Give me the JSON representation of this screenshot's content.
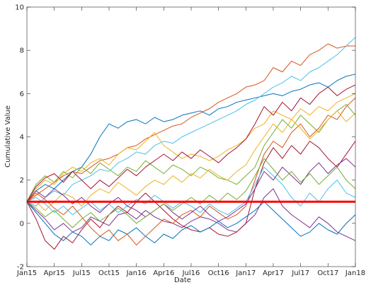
{
  "chart_data": {
    "type": "line",
    "xlabel": "Date",
    "ylabel": "Cumulative Value",
    "x": [
      0,
      1,
      2,
      3,
      4,
      5,
      6,
      7,
      8,
      9,
      10,
      11,
      12,
      13,
      14,
      15,
      16,
      17,
      18,
      19,
      20,
      21,
      22,
      23,
      24,
      25,
      26,
      27,
      28,
      29,
      30,
      31,
      32,
      33,
      34,
      35,
      36
    ],
    "xlim": [
      0,
      36
    ],
    "xticks": [
      {
        "value": 0,
        "label": "Jan15"
      },
      {
        "value": 3,
        "label": "Apr15"
      },
      {
        "value": 6,
        "label": "Jul15"
      },
      {
        "value": 9,
        "label": "Oct15"
      },
      {
        "value": 12,
        "label": "Jan16"
      },
      {
        "value": 15,
        "label": "Apr16"
      },
      {
        "value": 18,
        "label": "Jul16"
      },
      {
        "value": 21,
        "label": "Oct16"
      },
      {
        "value": 24,
        "label": "Jan17"
      },
      {
        "value": 27,
        "label": "Apr17"
      },
      {
        "value": 30,
        "label": "Jul17"
      },
      {
        "value": 33,
        "label": "Oct17"
      },
      {
        "value": 36,
        "label": "Jan18"
      }
    ],
    "ylim": [
      -2,
      10
    ],
    "yticks": [
      -2,
      0,
      2,
      4,
      6,
      8,
      10
    ],
    "hline": 1,
    "hline_color": "#ff0000",
    "series": [
      {
        "color": "#D95319",
        "values": [
          1,
          1.3,
          1.6,
          1.9,
          2.2,
          2.4,
          2.3,
          2.6,
          2.9,
          3.0,
          3.2,
          3.5,
          3.6,
          3.9,
          4.1,
          4.3,
          4.5,
          4.6,
          4.9,
          5.1,
          5.3,
          5.6,
          5.8,
          6.0,
          6.3,
          6.4,
          6.6,
          7.2,
          7.0,
          7.5,
          7.3,
          7.8,
          8.0,
          8.3,
          8.1,
          8.2,
          8.2
        ]
      },
      {
        "color": "#0072BD",
        "values": [
          1,
          1.5,
          1.8,
          1.6,
          2.0,
          2.4,
          2.6,
          3.2,
          4.0,
          4.6,
          4.4,
          4.7,
          4.8,
          4.6,
          4.9,
          4.7,
          4.8,
          5.0,
          5.1,
          5.2,
          5.0,
          5.3,
          5.4,
          5.6,
          5.7,
          5.8,
          5.9,
          6.0,
          5.9,
          6.1,
          6.2,
          6.4,
          6.5,
          6.3,
          6.6,
          6.8,
          6.9
        ]
      },
      {
        "color": "#4DBEEE",
        "values": [
          1,
          0.8,
          1.2,
          1.5,
          1.3,
          1.8,
          2.0,
          2.2,
          2.5,
          2.4,
          2.8,
          3.0,
          3.3,
          3.2,
          3.6,
          3.8,
          3.7,
          4.0,
          4.2,
          4.4,
          4.6,
          4.8,
          5.0,
          5.2,
          5.5,
          5.7,
          6.0,
          6.3,
          6.5,
          6.8,
          6.6,
          7.0,
          7.2,
          7.5,
          7.8,
          8.2,
          8.6
        ]
      },
      {
        "color": "#EDB120",
        "values": [
          1,
          1.6,
          2.0,
          1.8,
          2.3,
          2.6,
          2.4,
          2.8,
          3.0,
          2.7,
          3.2,
          3.5,
          3.4,
          3.8,
          4.2,
          3.6,
          3.3,
          3.0,
          3.2,
          3.1,
          2.9,
          3.1,
          3.4,
          3.6,
          3.9,
          4.4,
          4.6,
          5.2,
          5.0,
          4.8,
          5.3,
          5.0,
          5.4,
          5.2,
          5.6,
          5.8,
          6.0
        ]
      },
      {
        "color": "#7E2F8E",
        "values": [
          1,
          0.6,
          0.2,
          -0.3,
          0.0,
          -0.4,
          -0.2,
          0.3,
          0.1,
          -0.1,
          0.4,
          0.5,
          0.2,
          0.6,
          0.3,
          0.1,
          0.0,
          -0.2,
          0.1,
          0.3,
          0.2,
          0.0,
          -0.3,
          -0.4,
          0.0,
          0.4,
          1.2,
          1.6,
          0.8,
          0.4,
          0.1,
          -0.2,
          0.3,
          0.0,
          -0.4,
          -0.6,
          -0.8
        ]
      },
      {
        "color": "#77AC30",
        "values": [
          1,
          1.8,
          2.2,
          1.9,
          2.4,
          2.1,
          2.6,
          2.3,
          2.8,
          2.5,
          2.2,
          2.6,
          2.4,
          2.9,
          2.6,
          2.3,
          2.7,
          2.5,
          2.2,
          2.6,
          2.4,
          2.1,
          2.0,
          1.8,
          2.2,
          2.6,
          3.6,
          4.2,
          4.8,
          4.4,
          5.0,
          4.6,
          4.2,
          4.8,
          5.2,
          5.5,
          5.0
        ]
      },
      {
        "color": "#A2142F",
        "values": [
          1,
          0.2,
          -0.8,
          -1.2,
          -0.6,
          -0.9,
          -0.3,
          0.2,
          -0.2,
          0.4,
          0.8,
          0.5,
          1.0,
          1.4,
          1.0,
          0.6,
          0.2,
          -0.1,
          -0.3,
          -0.4,
          -0.2,
          -0.5,
          -0.6,
          -0.4,
          0.0,
          1.6,
          2.8,
          3.5,
          3.0,
          3.6,
          3.2,
          3.8,
          3.5,
          3.0,
          2.6,
          3.2,
          3.8
        ]
      },
      {
        "color": "#0072BD",
        "values": [
          1,
          0.5,
          0.0,
          -0.5,
          -0.8,
          -0.4,
          -0.6,
          -1.0,
          -0.6,
          -0.8,
          -0.3,
          -0.5,
          -0.2,
          -0.6,
          -0.9,
          -0.5,
          -0.7,
          -0.3,
          -0.1,
          -0.4,
          -0.2,
          0.1,
          -0.2,
          0.0,
          0.3,
          0.6,
          1.0,
          0.6,
          0.2,
          -0.2,
          -0.6,
          -0.4,
          0.0,
          -0.3,
          -0.5,
          0.0,
          0.4
        ]
      },
      {
        "color": "#D95319",
        "values": [
          1,
          1.4,
          1.1,
          0.7,
          0.4,
          0.8,
          0.3,
          -0.2,
          -0.6,
          -0.3,
          -0.8,
          -0.5,
          -1.0,
          -0.6,
          -0.2,
          0.2,
          0.0,
          0.4,
          0.6,
          0.3,
          0.8,
          0.5,
          0.2,
          0.4,
          0.8,
          2.0,
          3.2,
          3.8,
          3.5,
          4.2,
          4.6,
          4.0,
          4.4,
          5.0,
          4.8,
          5.4,
          5.8
        ]
      },
      {
        "color": "#4DBEEE",
        "values": [
          1,
          1.2,
          0.9,
          0.5,
          0.8,
          0.4,
          0.7,
          1.0,
          0.6,
          0.9,
          0.5,
          0.8,
          1.1,
          0.9,
          1.3,
          1.0,
          0.7,
          1.0,
          0.8,
          0.5,
          0.9,
          0.6,
          0.4,
          0.7,
          1.0,
          1.8,
          2.6,
          2.2,
          1.8,
          1.2,
          0.8,
          1.4,
          1.0,
          1.6,
          2.0,
          1.4,
          1.2
        ]
      },
      {
        "color": "#EDB120",
        "values": [
          1,
          1.0,
          0.6,
          1.0,
          1.4,
          1.2,
          0.8,
          1.3,
          1.6,
          1.4,
          1.9,
          1.6,
          1.3,
          1.7,
          2.0,
          1.8,
          2.2,
          1.9,
          2.3,
          2.1,
          2.5,
          2.2,
          2.0,
          2.4,
          2.7,
          3.4,
          4.0,
          4.6,
          4.2,
          4.8,
          4.4,
          3.9,
          4.3,
          4.8,
          5.2,
          4.7,
          5.1
        ]
      },
      {
        "color": "#7E2F8E",
        "values": [
          1,
          1.5,
          1.2,
          1.6,
          1.3,
          0.9,
          1.2,
          0.8,
          0.5,
          0.9,
          1.2,
          0.8,
          0.6,
          0.3,
          0.6,
          0.9,
          0.5,
          0.2,
          0.5,
          0.8,
          0.4,
          0.1,
          0.3,
          0.6,
          0.9,
          1.6,
          2.4,
          2.0,
          2.6,
          2.2,
          1.8,
          2.4,
          2.8,
          2.3,
          2.7,
          3.0,
          2.6
        ]
      },
      {
        "color": "#77AC30",
        "values": [
          1,
          0.7,
          0.3,
          0.6,
          0.2,
          -0.2,
          0.2,
          0.5,
          0.1,
          0.4,
          0.7,
          0.4,
          0.0,
          0.3,
          0.6,
          0.9,
          0.6,
          0.9,
          1.2,
          0.9,
          1.3,
          1.0,
          1.4,
          1.1,
          1.5,
          2.2,
          3.0,
          2.5,
          2.0,
          2.4,
          1.9,
          2.3,
          1.8,
          2.2,
          2.6,
          2.0,
          1.6
        ]
      },
      {
        "color": "#A2142F",
        "values": [
          1,
          1.7,
          2.1,
          2.3,
          1.9,
          2.4,
          2.0,
          1.6,
          2.0,
          1.7,
          2.1,
          2.5,
          2.2,
          2.6,
          2.9,
          3.2,
          2.9,
          3.3,
          3.0,
          3.4,
          3.1,
          2.8,
          3.2,
          3.5,
          3.9,
          4.6,
          5.4,
          5.0,
          5.6,
          5.2,
          5.8,
          5.5,
          6.0,
          6.3,
          5.9,
          6.2,
          6.4
        ]
      }
    ]
  }
}
